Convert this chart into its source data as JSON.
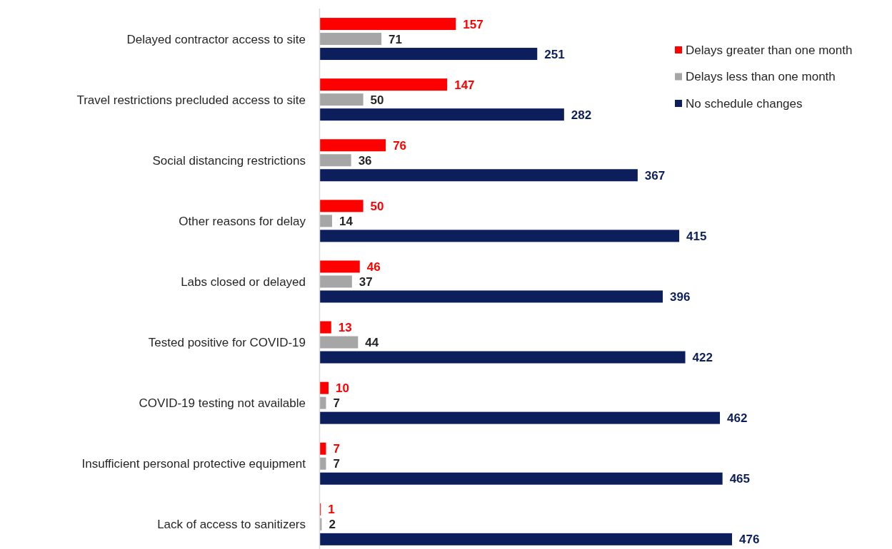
{
  "chart_data": {
    "type": "bar",
    "orientation": "horizontal",
    "data_labels": true,
    "legend": "top right",
    "categories": [
      "Delayed contractor access to site",
      "Travel restrictions precluded access to site",
      "Social distancing restrictions",
      "Other reasons for delay",
      "Labs closed or delayed",
      "Tested positive for COVID-19",
      "COVID-19 testing not available",
      "Insufficient personal protective equipment",
      "Lack of access to sanitizers"
    ],
    "series": [
      {
        "name": "Delays greater than one month",
        "color": "#ff0000",
        "values": [
          157,
          147,
          76,
          50,
          46,
          13,
          10,
          7,
          1
        ]
      },
      {
        "name": "Delays less than one month",
        "color": "#a6a6a6",
        "values": [
          71,
          50,
          36,
          14,
          37,
          44,
          7,
          7,
          2
        ]
      },
      {
        "name": "No schedule changes",
        "color": "#0c1f5c",
        "values": [
          251,
          282,
          367,
          415,
          396,
          422,
          462,
          465,
          476
        ]
      }
    ]
  }
}
